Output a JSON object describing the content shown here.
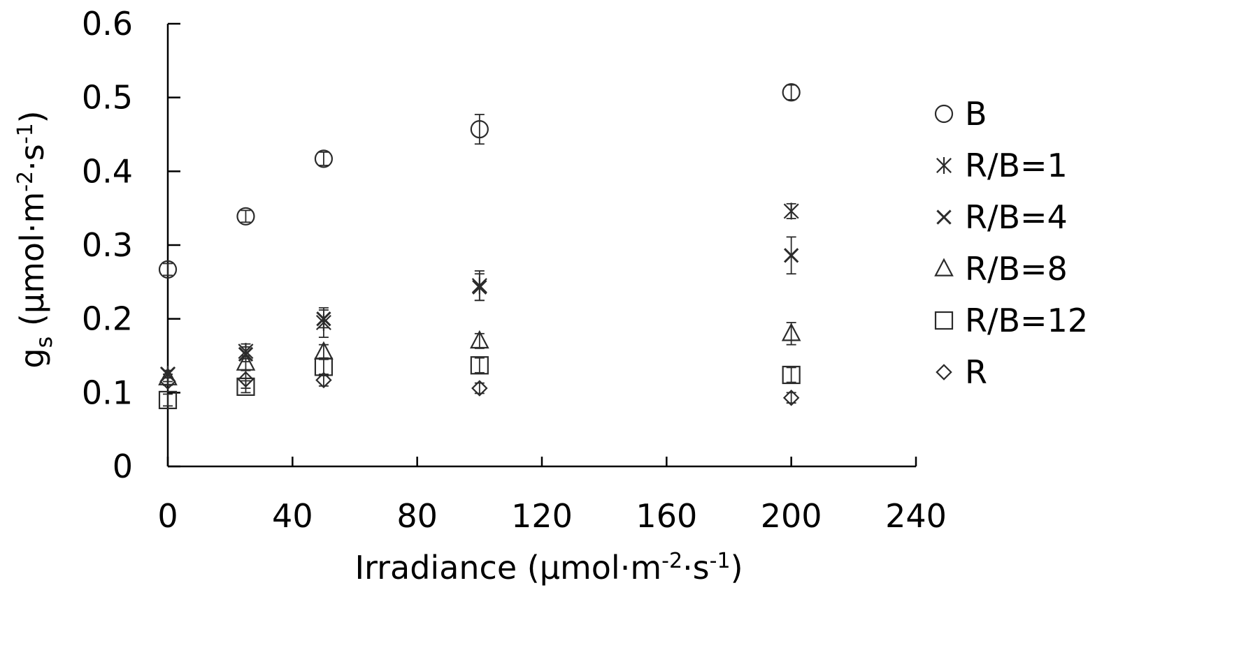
{
  "chart_data": {
    "type": "scatter",
    "title": "",
    "xlabel": {
      "prefix": "Irradiance (µmol·m",
      "sup1": "-2",
      "mid": "·s",
      "sup2": "-1",
      "suffix": ")"
    },
    "ylabel": {
      "main": "g",
      "sub": "s",
      "prefix": " (µmol·m",
      "sup1": "-2",
      "mid": "·s",
      "sup2": "-1",
      "suffix": ")"
    },
    "xlim": [
      0,
      240
    ],
    "ylim": [
      0,
      0.6
    ],
    "xticks": [
      0,
      40,
      80,
      120,
      160,
      200,
      240
    ],
    "yticks": [
      0,
      0.1,
      0.2,
      0.3,
      0.4,
      0.5,
      0.6
    ],
    "xtick_labels": [
      "0",
      "40",
      "80",
      "120",
      "160",
      "200",
      "240"
    ],
    "ytick_labels": [
      "0",
      "0.1",
      "0.2",
      "0.3",
      "0.4",
      "0.5",
      "0.6"
    ],
    "grid": false,
    "legend_position": "right",
    "x": [
      0,
      25,
      50,
      100,
      200
    ],
    "series": [
      {
        "name": "B",
        "marker": "circle",
        "values": [
          0.267,
          0.339,
          0.417,
          0.457,
          0.507
        ],
        "errors": [
          0.008,
          0.008,
          0.009,
          0.02,
          0.01
        ]
      },
      {
        "name": "R/B=1",
        "marker": "asterisk",
        "values": [
          0.125,
          0.156,
          0.195,
          0.245,
          0.346
        ],
        "errors": [
          0.005,
          0.01,
          0.02,
          0.02,
          0.01
        ]
      },
      {
        "name": "R/B=4",
        "marker": "x",
        "values": [
          0.125,
          0.152,
          0.2,
          0.243,
          0.286
        ],
        "errors": [
          0.005,
          0.01,
          0.012,
          0.018,
          0.025
        ]
      },
      {
        "name": "R/B=8",
        "marker": "triangle",
        "values": [
          0.12,
          0.14,
          0.155,
          0.17,
          0.18
        ],
        "errors": [
          0.005,
          0.01,
          0.01,
          0.01,
          0.015
        ]
      },
      {
        "name": "R/B=12",
        "marker": "square",
        "values": [
          0.09,
          0.108,
          0.135,
          0.137,
          0.124
        ],
        "errors": [
          0.008,
          0.008,
          0.012,
          0.01,
          0.01
        ]
      },
      {
        "name": "R",
        "marker": "diamond",
        "values": [
          0.115,
          0.118,
          0.117,
          0.106,
          0.093
        ],
        "errors": [
          0.005,
          0.012,
          0.008,
          0.007,
          0.007
        ]
      }
    ]
  }
}
